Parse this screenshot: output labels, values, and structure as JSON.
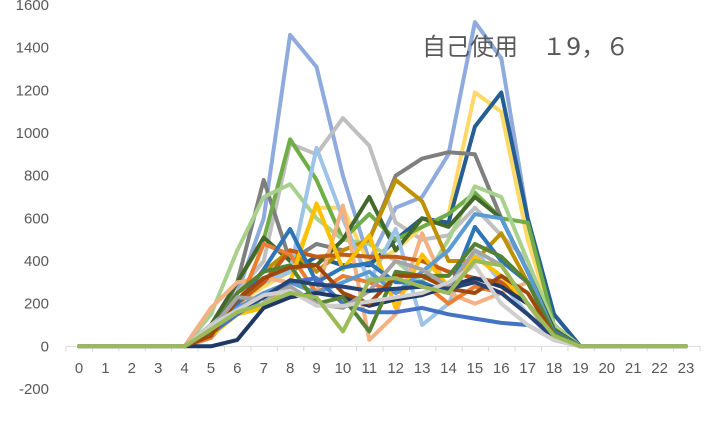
{
  "chart_data": {
    "type": "line",
    "title": "",
    "xlabel": "",
    "ylabel": "",
    "annotation": "自己使用　１9，６",
    "x": [
      0,
      1,
      2,
      3,
      4,
      5,
      6,
      7,
      8,
      9,
      10,
      11,
      12,
      13,
      14,
      15,
      16,
      17,
      18,
      19,
      20,
      21,
      22,
      23
    ],
    "x_tick_labels": [
      "0",
      "1",
      "2",
      "3",
      "4",
      "5",
      "6",
      "7",
      "8",
      "9",
      "10",
      "11",
      "12",
      "13",
      "14",
      "15",
      "16",
      "17",
      "18",
      "19",
      "20",
      "21",
      "22",
      "23"
    ],
    "y_ticks": [
      -200,
      0,
      200,
      400,
      600,
      800,
      1000,
      1200,
      1400,
      1600
    ],
    "y_tick_labels": [
      "-200",
      "0",
      "200",
      "400",
      "600",
      "800",
      "1000",
      "1200",
      "1400",
      "1600"
    ],
    "ylim": [
      -200,
      1600
    ],
    "xlim": [
      0,
      23
    ],
    "grid": false,
    "legend": "none",
    "series": [
      {
        "color": "#8faadc",
        "values": [
          0,
          0,
          0,
          0,
          0,
          100,
          250,
          600,
          1460,
          1310,
          800,
          400,
          650,
          700,
          900,
          1520,
          1350,
          600,
          150,
          0,
          0,
          0,
          0,
          0
        ]
      },
      {
        "color": "#bfbfbf",
        "values": [
          0,
          0,
          0,
          0,
          0,
          80,
          250,
          400,
          950,
          900,
          1070,
          940,
          580,
          500,
          520,
          650,
          520,
          400,
          100,
          0,
          0,
          0,
          0,
          0
        ]
      },
      {
        "color": "#ffd966",
        "values": [
          0,
          0,
          0,
          0,
          0,
          80,
          200,
          280,
          350,
          650,
          650,
          380,
          450,
          560,
          620,
          1190,
          1100,
          500,
          100,
          0,
          0,
          0,
          0,
          0
        ]
      },
      {
        "color": "#255e91",
        "values": [
          0,
          0,
          0,
          0,
          0,
          60,
          200,
          300,
          350,
          420,
          380,
          380,
          500,
          600,
          580,
          1030,
          1190,
          600,
          150,
          0,
          0,
          0,
          0,
          0
        ]
      },
      {
        "color": "#7f7f7f",
        "values": [
          0,
          0,
          0,
          0,
          0,
          50,
          300,
          780,
          400,
          480,
          450,
          500,
          800,
          880,
          910,
          900,
          600,
          350,
          100,
          0,
          0,
          0,
          0,
          0
        ]
      },
      {
        "color": "#70ad47",
        "values": [
          0,
          0,
          0,
          0,
          0,
          100,
          300,
          500,
          970,
          780,
          500,
          620,
          500,
          560,
          620,
          720,
          600,
          580,
          100,
          0,
          0,
          0,
          0,
          0
        ]
      },
      {
        "color": "#a9d18e",
        "values": [
          0,
          0,
          0,
          0,
          0,
          150,
          450,
          700,
          760,
          600,
          500,
          480,
          400,
          300,
          500,
          750,
          700,
          400,
          100,
          0,
          0,
          0,
          0,
          0
        ]
      },
      {
        "color": "#43682b",
        "values": [
          0,
          0,
          0,
          0,
          0,
          100,
          300,
          510,
          400,
          380,
          500,
          700,
          450,
          600,
          560,
          700,
          600,
          350,
          80,
          0,
          0,
          0,
          0,
          0
        ]
      },
      {
        "color": "#bf9000",
        "values": [
          0,
          0,
          0,
          0,
          0,
          60,
          250,
          350,
          450,
          350,
          450,
          500,
          780,
          680,
          400,
          400,
          530,
          300,
          70,
          0,
          0,
          0,
          0,
          0
        ]
      },
      {
        "color": "#9dc3e6",
        "values": [
          0,
          0,
          0,
          0,
          0,
          100,
          200,
          300,
          350,
          930,
          600,
          300,
          550,
          100,
          200,
          450,
          300,
          150,
          30,
          0,
          0,
          0,
          0,
          0
        ]
      },
      {
        "color": "#f4b183",
        "values": [
          0,
          0,
          0,
          0,
          0,
          180,
          300,
          320,
          300,
          250,
          660,
          30,
          150,
          530,
          250,
          200,
          250,
          300,
          50,
          0,
          0,
          0,
          0,
          0
        ]
      },
      {
        "color": "#c55a11",
        "values": [
          0,
          0,
          0,
          0,
          0,
          50,
          200,
          300,
          450,
          420,
          430,
          420,
          420,
          400,
          350,
          320,
          300,
          200,
          50,
          0,
          0,
          0,
          0,
          0
        ]
      },
      {
        "color": "#ed7d31",
        "values": [
          0,
          0,
          0,
          0,
          0,
          40,
          180,
          480,
          430,
          250,
          330,
          300,
          250,
          300,
          200,
          280,
          250,
          150,
          40,
          0,
          0,
          0,
          0,
          0
        ]
      },
      {
        "color": "#ffc000",
        "values": [
          0,
          0,
          0,
          0,
          0,
          50,
          150,
          180,
          300,
          670,
          360,
          520,
          180,
          430,
          280,
          420,
          330,
          200,
          40,
          0,
          0,
          0,
          0,
          0
        ]
      },
      {
        "color": "#2e75b6",
        "values": [
          0,
          0,
          0,
          0,
          0,
          80,
          200,
          360,
          550,
          300,
          370,
          390,
          300,
          300,
          250,
          560,
          400,
          300,
          70,
          0,
          0,
          0,
          0,
          0
        ]
      },
      {
        "color": "#5b9bd5",
        "values": [
          0,
          0,
          0,
          0,
          0,
          70,
          180,
          250,
          300,
          250,
          300,
          350,
          250,
          350,
          450,
          620,
          600,
          350,
          60,
          0,
          0,
          0,
          0,
          0
        ]
      },
      {
        "color": "#4472c4",
        "values": [
          0,
          0,
          0,
          0,
          0,
          60,
          150,
          230,
          300,
          320,
          200,
          160,
          160,
          180,
          150,
          130,
          110,
          100,
          30,
          0,
          0,
          0,
          0,
          0
        ]
      },
      {
        "color": "#1f3864",
        "values": [
          0,
          0,
          0,
          0,
          0,
          0,
          30,
          180,
          230,
          250,
          230,
          190,
          220,
          240,
          280,
          320,
          280,
          200,
          50,
          0,
          0,
          0,
          0,
          0
        ]
      },
      {
        "color": "#548235",
        "values": [
          0,
          0,
          0,
          0,
          0,
          70,
          250,
          350,
          380,
          200,
          230,
          70,
          350,
          330,
          330,
          480,
          420,
          300,
          60,
          0,
          0,
          0,
          0,
          0
        ]
      },
      {
        "color": "#9e480e",
        "values": [
          0,
          0,
          0,
          0,
          0,
          50,
          220,
          320,
          370,
          380,
          250,
          200,
          330,
          330,
          270,
          250,
          330,
          250,
          50,
          0,
          0,
          0,
          0,
          0
        ]
      },
      {
        "color": "#a5a5a5",
        "values": [
          0,
          0,
          0,
          0,
          0,
          80,
          230,
          220,
          280,
          200,
          180,
          260,
          400,
          360,
          280,
          450,
          380,
          200,
          30,
          0,
          0,
          0,
          0,
          0
        ]
      },
      {
        "color": "#264478",
        "values": [
          0,
          0,
          0,
          0,
          0,
          100,
          170,
          230,
          310,
          290,
          280,
          260,
          270,
          280,
          270,
          300,
          250,
          150,
          40,
          0,
          0,
          0,
          0,
          0
        ]
      },
      {
        "color": "#d0cece",
        "values": [
          0,
          0,
          0,
          0,
          0,
          100,
          170,
          240,
          260,
          190,
          190,
          210,
          230,
          250,
          300,
          380,
          200,
          100,
          30,
          0,
          0,
          0,
          0,
          0
        ]
      },
      {
        "color": "#9bbb59",
        "values": [
          0,
          0,
          0,
          0,
          0,
          80,
          160,
          200,
          250,
          230,
          70,
          310,
          320,
          280,
          250,
          400,
          380,
          200,
          50,
          0,
          0,
          0,
          0,
          0
        ]
      }
    ]
  }
}
